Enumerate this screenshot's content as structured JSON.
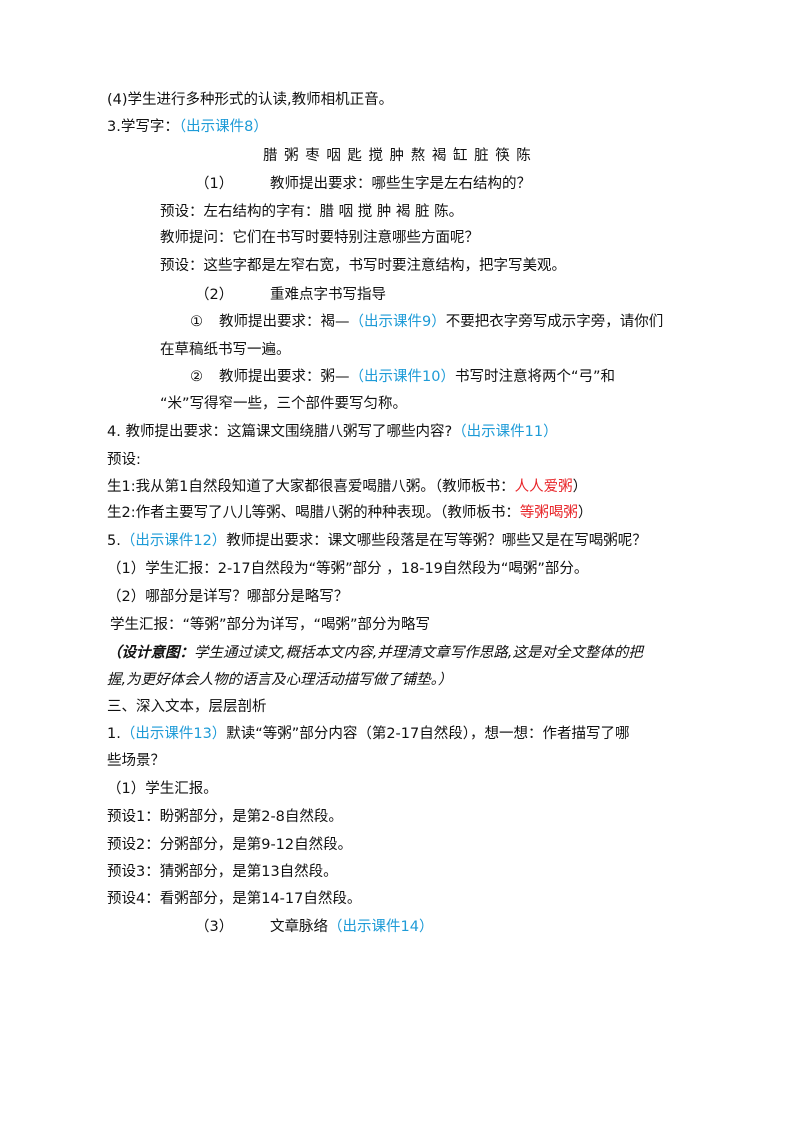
{
  "lines": [
    [
      "(4)学生进行多种形式的认读,教师相机正音。"
    ],
    [
      "3.学写字：",
      "（出示课件8）"
    ],
    [
      "腊 粥 枣 咽 匙 搅 肿 熬 褐 缸 脏 筷 陈"
    ],
    [
      "（1）",
      "教师提出要求：哪些生字是左右结构的？"
    ],
    [
      "预设：左右结构的字有：腊 咽 搅 肿 褐 脏 陈。"
    ],
    [
      "教师提问：它们在书写时要特别注意哪些方面呢？"
    ],
    [
      "预设：这些字都是左窄右宽，书写时要注意结构，把字写美观。"
    ],
    [
      "（2）",
      "重难点字书写指导"
    ],
    [
      "①",
      "教师提出要求：褐—",
      "（出示课件9）",
      "不要把衣字旁写成示字旁，请你们"
    ],
    [
      "在草稿纸书写一遍。"
    ],
    [
      "②",
      "教师提出要求：粥—",
      "（出示课件10）",
      "书写时注意将两个“弓”和"
    ],
    [
      "“米”写得窄一些，三个部件要写匀称。"
    ],
    [
      "4. 教师提出要求：这篇课文围绕腊八粥写了哪些内容?",
      "（出示课件11）"
    ],
    [
      "预设:"
    ],
    [
      "生1:我从第1自然段知道了大家都很喜爱喝腊八粥。（教师板书：",
      "人人爱粥",
      "）"
    ],
    [
      "生2:作者主要写了八儿等粥、喝腊八粥的种种表现。（教师板书：",
      "等粥喝粥",
      "）"
    ],
    [
      "5.",
      "（出示课件12）",
      "教师提出要求：课文哪些段落是在写等粥？哪些又是在写喝粥呢？"
    ],
    [
      "（1）学生汇报：2-17自然段为“等粥”部分 ，18-19自然段为“喝粥”部分。"
    ],
    [
      "（2）哪部分是详写？哪部分是略写？"
    ],
    [
      "学生汇报：“等粥”部分为详写，“喝粥”部分为略写"
    ],
    [
      "（设计意图：",
      "学生通过读文,概括本文内容,并理清文章写作思路,这是对全文整体的把"
    ],
    [
      "握,为更好体会人物的语言及心理活动描写做了铺垫。）"
    ],
    [
      "三、深入文本，层层剖析"
    ],
    [
      "1.",
      "（出示课件13）",
      "默读“等粥”部分内容（第2-17自然段），想一想：作者描写了哪"
    ],
    [
      "些场景？"
    ],
    [
      "（1）学生汇报。"
    ],
    [
      "预设1：盼粥部分，是第2-8自然段。"
    ],
    [
      "预设2：分粥部分，是第9-12自然段。"
    ],
    [
      "预设3：猜粥部分，是第13自然段。"
    ],
    [
      "预设4：看粥部分，是第14-17自然段。"
    ],
    [
      "（3）",
      "文章脉络",
      "（出示课件14）"
    ]
  ]
}
